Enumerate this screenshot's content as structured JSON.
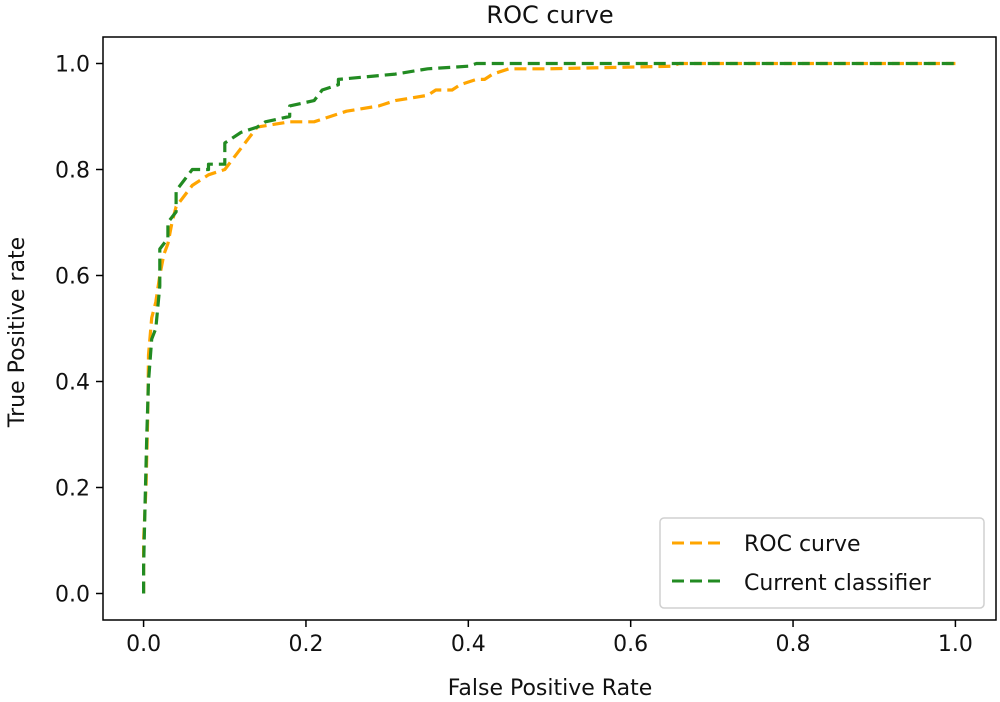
{
  "chart_data": {
    "type": "line",
    "title": "ROC curve",
    "xlabel": "False Positive Rate",
    "ylabel": "True Positive rate",
    "xlim": [
      -0.05,
      1.05
    ],
    "ylim": [
      -0.05,
      1.05
    ],
    "x_ticks": [
      0.0,
      0.2,
      0.4,
      0.6,
      0.8,
      1.0
    ],
    "y_ticks": [
      0.0,
      0.2,
      0.4,
      0.6,
      0.8,
      1.0
    ],
    "x_tick_labels": [
      "0.0",
      "0.2",
      "0.4",
      "0.6",
      "0.8",
      "1.0"
    ],
    "y_tick_labels": [
      "0.0",
      "0.2",
      "0.4",
      "0.6",
      "0.8",
      "1.0"
    ],
    "legend_position": "lower-right",
    "series": [
      {
        "name": "ROC curve",
        "color": "#ffa500",
        "line_style": "dashed",
        "points": [
          [
            0.0,
            0.0
          ],
          [
            0.0,
            0.1
          ],
          [
            0.003,
            0.2
          ],
          [
            0.005,
            0.33
          ],
          [
            0.006,
            0.45
          ],
          [
            0.01,
            0.52
          ],
          [
            0.015,
            0.55
          ],
          [
            0.02,
            0.6
          ],
          [
            0.025,
            0.64
          ],
          [
            0.03,
            0.66
          ],
          [
            0.035,
            0.7
          ],
          [
            0.04,
            0.73
          ],
          [
            0.05,
            0.75
          ],
          [
            0.06,
            0.77
          ],
          [
            0.07,
            0.78
          ],
          [
            0.08,
            0.79
          ],
          [
            0.1,
            0.8
          ],
          [
            0.11,
            0.82
          ],
          [
            0.12,
            0.84
          ],
          [
            0.13,
            0.86
          ],
          [
            0.14,
            0.88
          ],
          [
            0.18,
            0.89
          ],
          [
            0.21,
            0.89
          ],
          [
            0.23,
            0.9
          ],
          [
            0.25,
            0.91
          ],
          [
            0.29,
            0.92
          ],
          [
            0.31,
            0.93
          ],
          [
            0.35,
            0.94
          ],
          [
            0.36,
            0.95
          ],
          [
            0.38,
            0.95
          ],
          [
            0.39,
            0.96
          ],
          [
            0.41,
            0.97
          ],
          [
            0.42,
            0.97
          ],
          [
            0.43,
            0.98
          ],
          [
            0.45,
            0.99
          ],
          [
            0.5,
            0.99
          ],
          [
            0.65,
            0.995
          ],
          [
            0.66,
            1.0
          ],
          [
            1.0,
            1.0
          ]
        ]
      },
      {
        "name": "Current classifier",
        "color": "#228b22",
        "line_style": "dashed",
        "points": [
          [
            0.0,
            0.0
          ],
          [
            0.0,
            0.05
          ],
          [
            0.002,
            0.18
          ],
          [
            0.004,
            0.3
          ],
          [
            0.006,
            0.4
          ],
          [
            0.01,
            0.48
          ],
          [
            0.015,
            0.5
          ],
          [
            0.02,
            0.58
          ],
          [
            0.02,
            0.65
          ],
          [
            0.03,
            0.67
          ],
          [
            0.03,
            0.7
          ],
          [
            0.04,
            0.72
          ],
          [
            0.04,
            0.76
          ],
          [
            0.05,
            0.78
          ],
          [
            0.06,
            0.8
          ],
          [
            0.08,
            0.8
          ],
          [
            0.08,
            0.81
          ],
          [
            0.1,
            0.81
          ],
          [
            0.1,
            0.85
          ],
          [
            0.12,
            0.87
          ],
          [
            0.14,
            0.88
          ],
          [
            0.15,
            0.89
          ],
          [
            0.18,
            0.9
          ],
          [
            0.18,
            0.92
          ],
          [
            0.21,
            0.93
          ],
          [
            0.22,
            0.95
          ],
          [
            0.24,
            0.96
          ],
          [
            0.24,
            0.97
          ],
          [
            0.31,
            0.98
          ],
          [
            0.35,
            0.99
          ],
          [
            0.4,
            0.995
          ],
          [
            0.41,
            1.0
          ],
          [
            1.0,
            1.0
          ]
        ]
      }
    ]
  }
}
